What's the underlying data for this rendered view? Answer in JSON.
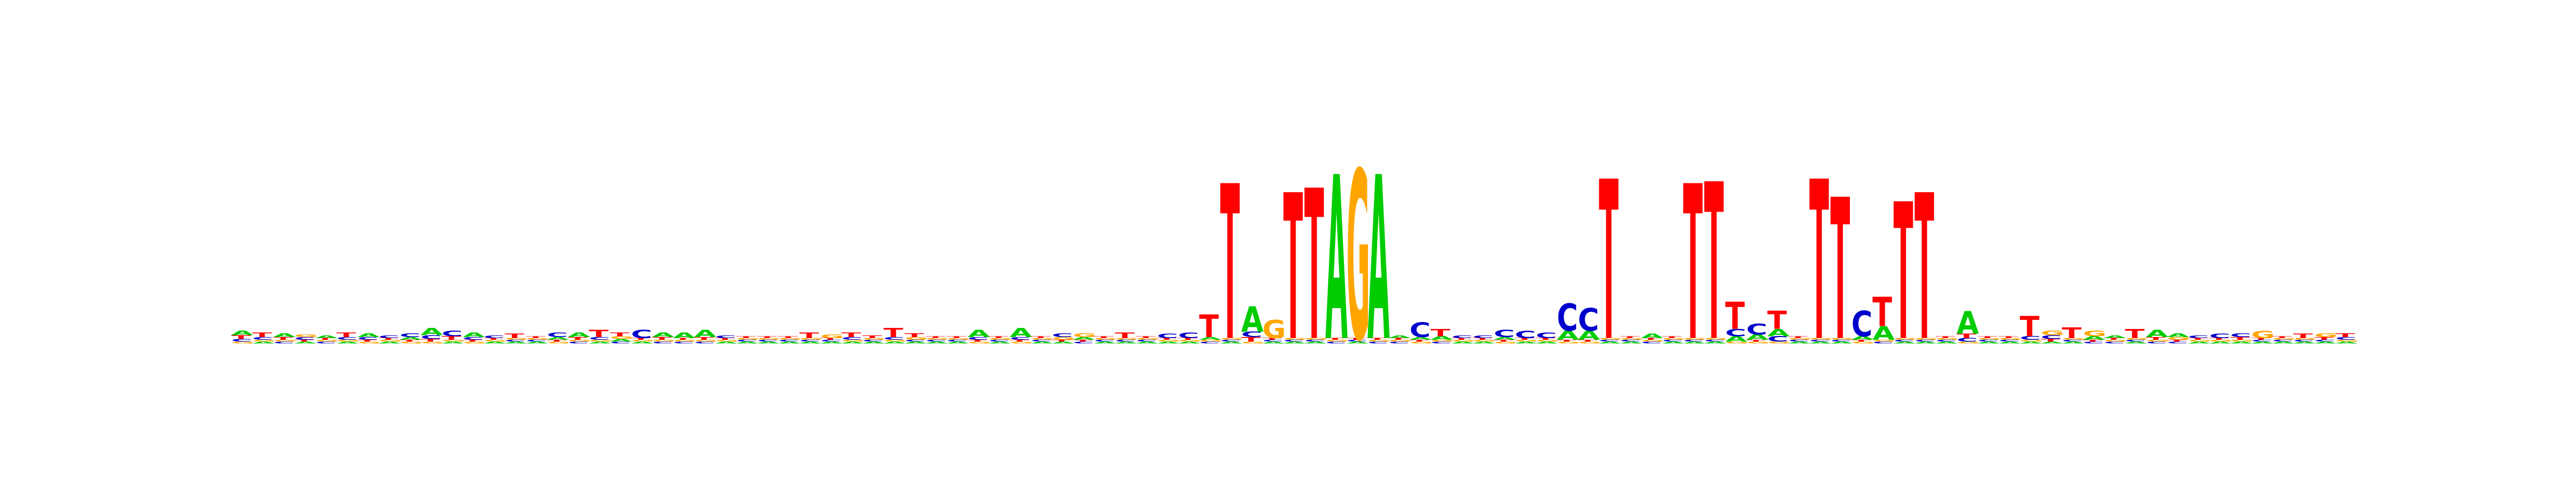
{
  "chart_data": {
    "type": "sequence-logo",
    "title": "",
    "xlabel": "",
    "ylabel": "",
    "alphabet": [
      "A",
      "C",
      "G",
      "T"
    ],
    "colors": {
      "A": "#00cc00",
      "C": "#0000cc",
      "G": "#ffa500",
      "T": "#ff0000"
    },
    "ylim": [
      0,
      2
    ],
    "axes_shown": false,
    "grid": false,
    "positions": [
      {
        "A": 0.05,
        "C": 0.03,
        "G": 0.02,
        "T": 0.04
      },
      {
        "A": 0.02,
        "C": 0.03,
        "G": 0.02,
        "T": 0.05
      },
      {
        "A": 0.04,
        "C": 0.02,
        "G": 0.02,
        "T": 0.03
      },
      {
        "A": 0.02,
        "C": 0.03,
        "G": 0.03,
        "T": 0.02
      },
      {
        "A": 0.03,
        "C": 0.02,
        "G": 0.02,
        "T": 0.02
      },
      {
        "A": 0.02,
        "C": 0.03,
        "G": 0.02,
        "T": 0.05
      },
      {
        "A": 0.04,
        "C": 0.03,
        "G": 0.02,
        "T": 0.02
      },
      {
        "A": 0.02,
        "C": 0.03,
        "G": 0.02,
        "T": 0.02
      },
      {
        "A": 0.03,
        "C": 0.04,
        "G": 0.02,
        "T": 0.02
      },
      {
        "A": 0.08,
        "C": 0.04,
        "G": 0.02,
        "T": 0.03
      },
      {
        "A": 0.02,
        "C": 0.06,
        "G": 0.02,
        "T": 0.04
      },
      {
        "A": 0.05,
        "C": 0.03,
        "G": 0.02,
        "T": 0.02
      },
      {
        "A": 0.02,
        "C": 0.03,
        "G": 0.02,
        "T": 0.02
      },
      {
        "A": 0.02,
        "C": 0.02,
        "G": 0.02,
        "T": 0.05
      },
      {
        "A": 0.02,
        "C": 0.02,
        "G": 0.02,
        "T": 0.02
      },
      {
        "A": 0.03,
        "C": 0.05,
        "G": 0.02,
        "T": 0.02
      },
      {
        "A": 0.05,
        "C": 0.02,
        "G": 0.02,
        "T": 0.03
      },
      {
        "A": 0.02,
        "C": 0.03,
        "G": 0.02,
        "T": 0.08
      },
      {
        "A": 0.03,
        "C": 0.02,
        "G": 0.03,
        "T": 0.04
      },
      {
        "A": 0.02,
        "C": 0.09,
        "G": 0.02,
        "T": 0.02
      },
      {
        "A": 0.05,
        "C": 0.02,
        "G": 0.02,
        "T": 0.03
      },
      {
        "A": 0.06,
        "C": 0.02,
        "G": 0.02,
        "T": 0.02
      },
      {
        "A": 0.08,
        "C": 0.02,
        "G": 0.02,
        "T": 0.03
      },
      {
        "A": 0.02,
        "C": 0.03,
        "G": 0.02,
        "T": 0.02
      },
      {
        "A": 0.02,
        "C": 0.02,
        "G": 0.02,
        "T": 0.02
      },
      {
        "A": 0.02,
        "C": 0.02,
        "G": 0.02,
        "T": 0.02
      },
      {
        "A": 0.02,
        "C": 0.02,
        "G": 0.02,
        "T": 0.02
      },
      {
        "A": 0.02,
        "C": 0.02,
        "G": 0.02,
        "T": 0.06
      },
      {
        "A": 0.02,
        "C": 0.02,
        "G": 0.04,
        "T": 0.02
      },
      {
        "A": 0.02,
        "C": 0.03,
        "G": 0.02,
        "T": 0.05
      },
      {
        "A": 0.02,
        "C": 0.02,
        "G": 0.02,
        "T": 0.03
      },
      {
        "A": 0.02,
        "C": 0.03,
        "G": 0.02,
        "T": 0.1
      },
      {
        "A": 0.02,
        "C": 0.02,
        "G": 0.03,
        "T": 0.04
      },
      {
        "A": 0.02,
        "C": 0.02,
        "G": 0.02,
        "T": 0.02
      },
      {
        "A": 0.02,
        "C": 0.02,
        "G": 0.02,
        "T": 0.02
      },
      {
        "A": 0.08,
        "C": 0.03,
        "G": 0.02,
        "T": 0.02
      },
      {
        "A": 0.02,
        "C": 0.02,
        "G": 0.02,
        "T": 0.02
      },
      {
        "A": 0.1,
        "C": 0.03,
        "G": 0.02,
        "T": 0.02
      },
      {
        "A": 0.02,
        "C": 0.02,
        "G": 0.02,
        "T": 0.02
      },
      {
        "A": 0.02,
        "C": 0.04,
        "G": 0.03,
        "T": 0.02
      },
      {
        "A": 0.03,
        "C": 0.02,
        "G": 0.04,
        "T": 0.02
      },
      {
        "A": 0.02,
        "C": 0.02,
        "G": 0.02,
        "T": 0.02
      },
      {
        "A": 0.02,
        "C": 0.02,
        "G": 0.02,
        "T": 0.06
      },
      {
        "A": 0.02,
        "C": 0.02,
        "G": 0.02,
        "T": 0.02
      },
      {
        "A": 0.02,
        "C": 0.05,
        "G": 0.02,
        "T": 0.02
      },
      {
        "A": 0.02,
        "C": 0.06,
        "G": 0.02,
        "T": 0.02
      },
      {
        "A": 0.03,
        "C": 0.02,
        "G": 0.02,
        "T": 0.25
      },
      {
        "A": 0.02,
        "C": 0.02,
        "G": 0.02,
        "T": 1.7
      },
      {
        "A": 0.28,
        "C": 0.06,
        "G": 0.02,
        "T": 0.05
      },
      {
        "A": 0.02,
        "C": 0.02,
        "G": 0.2,
        "T": 0.02
      },
      {
        "A": 0.02,
        "C": 0.02,
        "G": 0.02,
        "T": 1.6
      },
      {
        "A": 0.02,
        "C": 0.02,
        "G": 0.02,
        "T": 1.65
      },
      {
        "A": 1.8,
        "C": 0.02,
        "G": 0.02,
        "T": 0.02
      },
      {
        "A": 0.02,
        "C": 0.02,
        "G": 1.85,
        "T": 0.02
      },
      {
        "A": 1.8,
        "C": 0.02,
        "G": 0.02,
        "T": 0.02
      },
      {
        "A": 0.03,
        "C": 0.02,
        "G": 0.02,
        "T": 0.02
      },
      {
        "A": 0.03,
        "C": 0.16,
        "G": 0.02,
        "T": 0.02
      },
      {
        "A": 0.04,
        "C": 0.02,
        "G": 0.02,
        "T": 0.08
      },
      {
        "A": 0.02,
        "C": 0.03,
        "G": 0.02,
        "T": 0.02
      },
      {
        "A": 0.02,
        "C": 0.03,
        "G": 0.02,
        "T": 0.02
      },
      {
        "A": 0.03,
        "C": 0.08,
        "G": 0.02,
        "T": 0.02
      },
      {
        "A": 0.02,
        "C": 0.08,
        "G": 0.02,
        "T": 0.02
      },
      {
        "A": 0.02,
        "C": 0.06,
        "G": 0.02,
        "T": 0.02
      },
      {
        "A": 0.1,
        "C": 0.3,
        "G": 0.02,
        "T": 0.02
      },
      {
        "A": 0.1,
        "C": 0.25,
        "G": 0.02,
        "T": 0.02
      },
      {
        "A": 0.02,
        "C": 0.02,
        "G": 0.02,
        "T": 1.75
      },
      {
        "A": 0.02,
        "C": 0.02,
        "G": 0.02,
        "T": 0.02
      },
      {
        "A": 0.05,
        "C": 0.02,
        "G": 0.02,
        "T": 0.02
      },
      {
        "A": 0.02,
        "C": 0.02,
        "G": 0.02,
        "T": 0.02
      },
      {
        "A": 0.02,
        "C": 0.02,
        "G": 0.02,
        "T": 1.7
      },
      {
        "A": 0.02,
        "C": 0.02,
        "G": 0.02,
        "T": 1.72
      },
      {
        "A": 0.06,
        "C": 0.08,
        "G": 0.02,
        "T": 0.3
      },
      {
        "A": 0.06,
        "C": 0.12,
        "G": 0.02,
        "T": 0.02
      },
      {
        "A": 0.08,
        "C": 0.06,
        "G": 0.02,
        "T": 0.2
      },
      {
        "A": 0.02,
        "C": 0.02,
        "G": 0.02,
        "T": 0.02
      },
      {
        "A": 0.02,
        "C": 0.02,
        "G": 0.02,
        "T": 1.75
      },
      {
        "A": 0.02,
        "C": 0.02,
        "G": 0.02,
        "T": 1.55
      },
      {
        "A": 0.04,
        "C": 0.28,
        "G": 0.02,
        "T": 0.02
      },
      {
        "A": 0.15,
        "C": 0.02,
        "G": 0.02,
        "T": 0.32
      },
      {
        "A": 0.02,
        "C": 0.02,
        "G": 0.02,
        "T": 1.5
      },
      {
        "A": 0.02,
        "C": 0.02,
        "G": 0.02,
        "T": 1.6
      },
      {
        "A": 0.02,
        "C": 0.02,
        "G": 0.02,
        "T": 0.02
      },
      {
        "A": 0.25,
        "C": 0.04,
        "G": 0.02,
        "T": 0.05
      },
      {
        "A": 0.02,
        "C": 0.02,
        "G": 0.02,
        "T": 0.02
      },
      {
        "A": 0.02,
        "C": 0.02,
        "G": 0.02,
        "T": 0.02
      },
      {
        "A": 0.02,
        "C": 0.04,
        "G": 0.02,
        "T": 0.22
      },
      {
        "A": 0.02,
        "C": 0.04,
        "G": 0.05,
        "T": 0.03
      },
      {
        "A": 0.02,
        "C": 0.02,
        "G": 0.02,
        "T": 0.12
      },
      {
        "A": 0.04,
        "C": 0.02,
        "G": 0.06,
        "T": 0.02
      },
      {
        "A": 0.03,
        "C": 0.02,
        "G": 0.02,
        "T": 0.02
      },
      {
        "A": 0.02,
        "C": 0.02,
        "G": 0.02,
        "T": 0.1
      },
      {
        "A": 0.08,
        "C": 0.02,
        "G": 0.02,
        "T": 0.03
      },
      {
        "A": 0.04,
        "C": 0.02,
        "G": 0.03,
        "T": 0.02
      },
      {
        "A": 0.02,
        "C": 0.03,
        "G": 0.02,
        "T": 0.02
      },
      {
        "A": 0.02,
        "C": 0.05,
        "G": 0.02,
        "T": 0.02
      },
      {
        "A": 0.02,
        "C": 0.04,
        "G": 0.02,
        "T": 0.03
      },
      {
        "A": 0.02,
        "C": 0.02,
        "G": 0.08,
        "T": 0.02
      },
      {
        "A": 0.02,
        "C": 0.02,
        "G": 0.02,
        "T": 0.02
      },
      {
        "A": 0.02,
        "C": 0.02,
        "G": 0.02,
        "T": 0.05
      },
      {
        "A": 0.02,
        "C": 0.02,
        "G": 0.04,
        "T": 0.03
      },
      {
        "A": 0.02,
        "C": 0.03,
        "G": 0.02,
        "T": 0.04
      }
    ]
  }
}
